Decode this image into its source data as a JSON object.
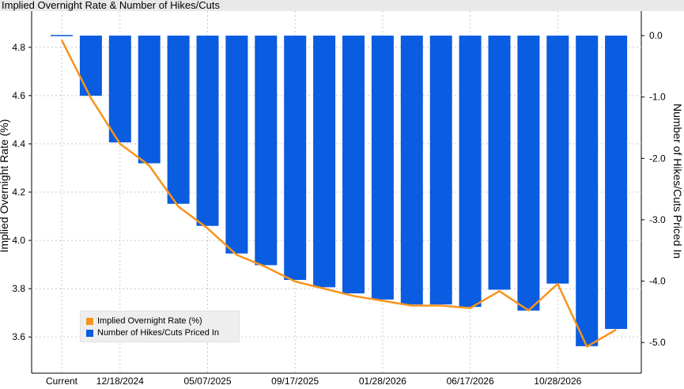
{
  "title": "Implied Overnight Rate & Number of Hikes/Cuts",
  "colors": {
    "rate_line": "#f7941d",
    "bars": "#0a5ce0",
    "grid": "#c8c8c8",
    "axis": "#000000"
  },
  "chart_data": {
    "type": "bar",
    "title": "Implied Overnight Rate & Number of Hikes/Cuts",
    "categories": [
      "Current",
      "",
      "12/18/2024",
      "",
      "",
      "05/07/2025",
      "",
      "",
      "09/17/2025",
      "",
      "",
      "01/28/2026",
      "",
      "",
      "06/17/2026",
      "",
      "",
      "10/28/2026",
      "",
      ""
    ],
    "x_tick_labels": [
      "Current",
      "12/18/2024",
      "05/07/2025",
      "09/17/2025",
      "01/28/2026",
      "06/17/2026",
      "10/28/2026"
    ],
    "ylabel_left": "Implied Overnight Rate (%)",
    "ylabel_right": "Number of Hikes/Cuts Priced In",
    "ylim_left": [
      3.45,
      4.95
    ],
    "ylim_right": [
      -5.5,
      0.4
    ],
    "left_ticks": [
      "4.8",
      "4.6",
      "4.4",
      "4.2",
      "4.0",
      "3.8",
      "3.6"
    ],
    "right_ticks": [
      "0.0",
      "-1.0",
      "-2.0",
      "-3.0",
      "-4.0",
      "-5.0"
    ],
    "grid": true,
    "legend_position": "bottom-left",
    "series": [
      {
        "name": "Implied Overnight Rate (%)",
        "type": "line",
        "axis": "left",
        "values": [
          4.83,
          4.59,
          4.4,
          4.31,
          4.14,
          4.05,
          3.94,
          3.89,
          3.83,
          3.8,
          3.77,
          3.75,
          3.73,
          3.73,
          3.72,
          3.79,
          3.71,
          3.82,
          3.56,
          3.63
        ]
      },
      {
        "name": "Number of Hikes/Cuts Priced In",
        "type": "bar",
        "axis": "right",
        "values": [
          0.0,
          -0.98,
          -1.74,
          -2.08,
          -2.74,
          -3.1,
          -3.55,
          -3.74,
          -3.98,
          -4.1,
          -4.2,
          -4.3,
          -4.38,
          -4.38,
          -4.42,
          -4.14,
          -4.48,
          -4.04,
          -5.06,
          -4.78
        ]
      }
    ]
  }
}
